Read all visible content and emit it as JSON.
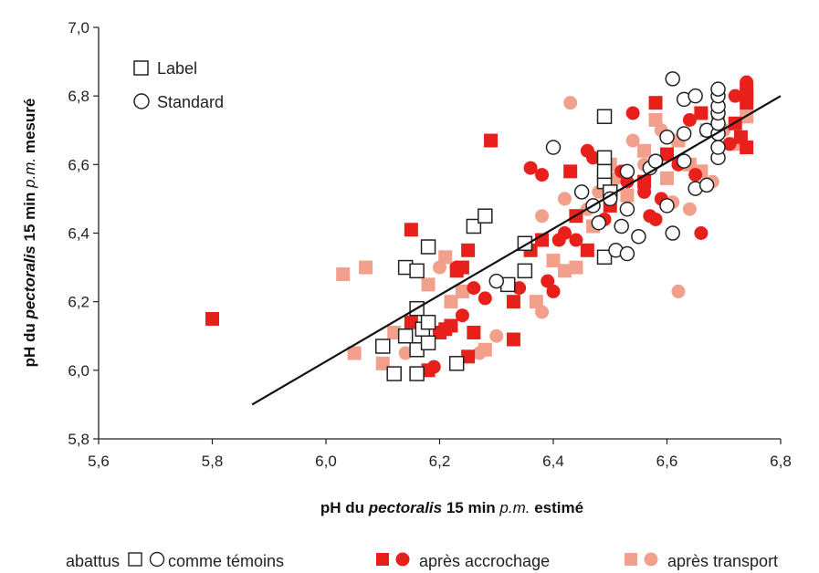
{
  "chart_data": {
    "type": "scatter",
    "xlabel": {
      "parts": [
        "pH du ",
        "pectoralis",
        " 15 min ",
        "p.m.",
        " estimé"
      ]
    },
    "ylabel": {
      "parts": [
        "pH du ",
        "pectoralis",
        " 15 min ",
        "p.m.",
        " mesuré"
      ]
    },
    "xlim": [
      5.6,
      6.8
    ],
    "ylim": [
      5.8,
      7.0
    ],
    "x_ticks": [
      "5,6",
      "5,8",
      "6,0",
      "6,2",
      "6,4",
      "6,6",
      "6,8"
    ],
    "y_ticks": [
      "5,8",
      "6,0",
      "6,2",
      "6,4",
      "6,6",
      "6,8",
      "7,0"
    ],
    "grid": false,
    "legend": {
      "placement": "top-left",
      "entries": [
        {
          "symbol": "square",
          "label": "Label"
        },
        {
          "symbol": "circle",
          "label": "Standard"
        }
      ]
    },
    "bottom_legend": {
      "prefix": "abattus",
      "groups": [
        {
          "label": "comme témoins",
          "color": "#ffffff"
        },
        {
          "label": "après accrochage",
          "color": "#e8201c"
        },
        {
          "label": "après transport",
          "color": "#f2a08c"
        }
      ]
    },
    "regression_line": {
      "x": [
        5.87,
        6.8
      ],
      "y": [
        5.9,
        6.8
      ]
    },
    "colors": {
      "temoins": "#ffffff",
      "accrochage": "#e8201c",
      "transport": "#f2a08c"
    },
    "series": [
      {
        "group": "temoins",
        "shape": "square",
        "points": [
          [
            6.12,
            5.99
          ],
          [
            6.16,
            5.99
          ],
          [
            6.1,
            6.07
          ],
          [
            6.14,
            6.1
          ],
          [
            6.16,
            6.06
          ],
          [
            6.18,
            6.08
          ],
          [
            6.17,
            6.12
          ],
          [
            6.16,
            6.18
          ],
          [
            6.18,
            6.14
          ],
          [
            6.14,
            6.3
          ],
          [
            6.16,
            6.29
          ],
          [
            6.18,
            6.36
          ],
          [
            6.23,
            6.02
          ],
          [
            6.26,
            6.42
          ],
          [
            6.28,
            6.45
          ],
          [
            6.35,
            6.29
          ],
          [
            6.35,
            6.37
          ],
          [
            6.49,
            6.33
          ],
          [
            6.49,
            6.55
          ],
          [
            6.49,
            6.58
          ],
          [
            6.49,
            6.62
          ],
          [
            6.49,
            6.74
          ],
          [
            6.5,
            6.52
          ],
          [
            6.32,
            6.25
          ]
        ]
      },
      {
        "group": "temoins",
        "shape": "circle",
        "points": [
          [
            6.3,
            6.26
          ],
          [
            6.4,
            6.65
          ],
          [
            6.45,
            6.52
          ],
          [
            6.47,
            6.48
          ],
          [
            6.48,
            6.43
          ],
          [
            6.5,
            6.5
          ],
          [
            6.51,
            6.35
          ],
          [
            6.52,
            6.42
          ],
          [
            6.53,
            6.47
          ],
          [
            6.53,
            6.34
          ],
          [
            6.55,
            6.39
          ],
          [
            6.53,
            6.58
          ],
          [
            6.57,
            6.59
          ],
          [
            6.58,
            6.61
          ],
          [
            6.6,
            6.48
          ],
          [
            6.61,
            6.4
          ],
          [
            6.6,
            6.68
          ],
          [
            6.61,
            6.85
          ],
          [
            6.63,
            6.79
          ],
          [
            6.63,
            6.69
          ],
          [
            6.63,
            6.61
          ],
          [
            6.65,
            6.8
          ],
          [
            6.65,
            6.53
          ],
          [
            6.67,
            6.54
          ],
          [
            6.67,
            6.7
          ],
          [
            6.69,
            6.62
          ],
          [
            6.69,
            6.65
          ],
          [
            6.69,
            6.69
          ],
          [
            6.69,
            6.72
          ],
          [
            6.69,
            6.75
          ],
          [
            6.69,
            6.77
          ],
          [
            6.69,
            6.8
          ],
          [
            6.69,
            6.82
          ]
        ]
      },
      {
        "group": "accrochage",
        "shape": "square",
        "points": [
          [
            5.8,
            6.15
          ],
          [
            6.15,
            6.41
          ],
          [
            6.15,
            6.14
          ],
          [
            6.18,
            6.0
          ],
          [
            6.2,
            6.11
          ],
          [
            6.21,
            6.12
          ],
          [
            6.22,
            6.13
          ],
          [
            6.23,
            6.29
          ],
          [
            6.24,
            6.3
          ],
          [
            6.25,
            6.35
          ],
          [
            6.25,
            6.04
          ],
          [
            6.26,
            6.11
          ],
          [
            6.29,
            6.67
          ],
          [
            6.33,
            6.09
          ],
          [
            6.33,
            6.2
          ],
          [
            6.36,
            6.35
          ],
          [
            6.38,
            6.38
          ],
          [
            6.43,
            6.58
          ],
          [
            6.44,
            6.45
          ],
          [
            6.46,
            6.35
          ],
          [
            6.5,
            6.48
          ],
          [
            6.56,
            6.55
          ],
          [
            6.58,
            6.78
          ],
          [
            6.6,
            6.63
          ],
          [
            6.66,
            6.75
          ],
          [
            6.72,
            6.72
          ],
          [
            6.73,
            6.68
          ],
          [
            6.74,
            6.78
          ],
          [
            6.74,
            6.8
          ],
          [
            6.74,
            6.82
          ],
          [
            6.74,
            6.65
          ]
        ]
      },
      {
        "group": "accrochage",
        "shape": "circle",
        "points": [
          [
            6.19,
            6.01
          ],
          [
            6.21,
            6.12
          ],
          [
            6.23,
            6.3
          ],
          [
            6.24,
            6.16
          ],
          [
            6.26,
            6.24
          ],
          [
            6.28,
            6.21
          ],
          [
            6.34,
            6.24
          ],
          [
            6.36,
            6.59
          ],
          [
            6.38,
            6.57
          ],
          [
            6.39,
            6.26
          ],
          [
            6.4,
            6.23
          ],
          [
            6.41,
            6.38
          ],
          [
            6.42,
            6.4
          ],
          [
            6.44,
            6.38
          ],
          [
            6.46,
            6.64
          ],
          [
            6.47,
            6.62
          ],
          [
            6.49,
            6.44
          ],
          [
            6.52,
            6.58
          ],
          [
            6.53,
            6.55
          ],
          [
            6.54,
            6.75
          ],
          [
            6.56,
            6.52
          ],
          [
            6.57,
            6.45
          ],
          [
            6.58,
            6.44
          ],
          [
            6.59,
            6.5
          ],
          [
            6.62,
            6.6
          ],
          [
            6.64,
            6.73
          ],
          [
            6.65,
            6.57
          ],
          [
            6.66,
            6.4
          ],
          [
            6.69,
            6.74
          ],
          [
            6.71,
            6.66
          ],
          [
            6.72,
            6.8
          ],
          [
            6.74,
            6.84
          ]
        ]
      },
      {
        "group": "transport",
        "shape": "square",
        "points": [
          [
            6.03,
            6.28
          ],
          [
            6.05,
            6.05
          ],
          [
            6.07,
            6.3
          ],
          [
            6.1,
            6.02
          ],
          [
            6.12,
            6.11
          ],
          [
            6.18,
            6.25
          ],
          [
            6.21,
            6.33
          ],
          [
            6.22,
            6.2
          ],
          [
            6.24,
            6.23
          ],
          [
            6.28,
            6.06
          ],
          [
            6.37,
            6.2
          ],
          [
            6.4,
            6.32
          ],
          [
            6.42,
            6.29
          ],
          [
            6.44,
            6.3
          ],
          [
            6.47,
            6.42
          ],
          [
            6.5,
            6.6
          ],
          [
            6.53,
            6.51
          ],
          [
            6.56,
            6.64
          ],
          [
            6.58,
            6.73
          ],
          [
            6.6,
            6.56
          ],
          [
            6.62,
            6.67
          ],
          [
            6.64,
            6.6
          ],
          [
            6.66,
            6.58
          ],
          [
            6.67,
            6.7
          ],
          [
            6.72,
            6.66
          ],
          [
            6.74,
            6.74
          ]
        ]
      },
      {
        "group": "transport",
        "shape": "circle",
        "points": [
          [
            6.14,
            6.05
          ],
          [
            6.2,
            6.3
          ],
          [
            6.27,
            6.05
          ],
          [
            6.3,
            6.1
          ],
          [
            6.38,
            6.17
          ],
          [
            6.38,
            6.45
          ],
          [
            6.42,
            6.5
          ],
          [
            6.43,
            6.78
          ],
          [
            6.46,
            6.47
          ],
          [
            6.48,
            6.52
          ],
          [
            6.51,
            6.56
          ],
          [
            6.54,
            6.67
          ],
          [
            6.56,
            6.6
          ],
          [
            6.59,
            6.7
          ],
          [
            6.61,
            6.49
          ],
          [
            6.62,
            6.23
          ],
          [
            6.64,
            6.47
          ],
          [
            6.68,
            6.55
          ],
          [
            6.7,
            6.7
          ]
        ]
      }
    ]
  }
}
